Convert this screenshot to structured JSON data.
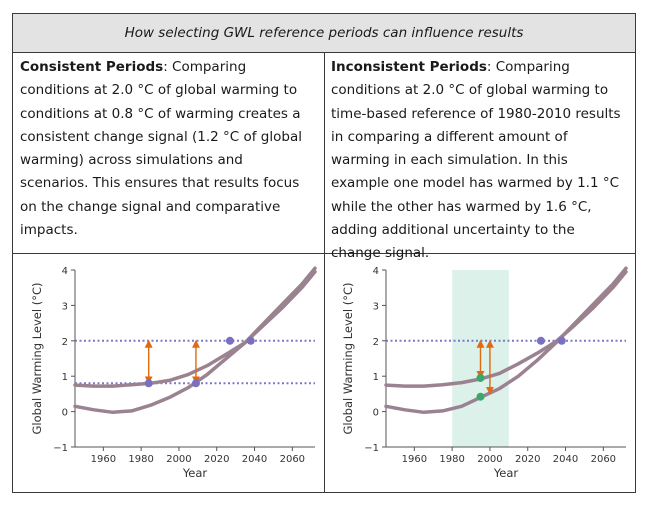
{
  "title": "How selecting GWL reference periods can influence results",
  "left_panel": {
    "heading": "Consistent Periods",
    "text": ": Comparing conditions at 2.0 °C of global warming to conditions at 0.8 °C of warming creates a consistent change signal (1.2 °C of global warming) across simulations and scenarios. This ensures that results focus on the change signal and comparative impacts."
  },
  "right_panel": {
    "heading": "Inconsistent Periods",
    "text": ": Comparing conditions at 2.0 °C of global warming to time-based reference of 1980-2010 results in comparing a different amount of warming in each simulation. In this example one model has warmed by 1.1 °C while the other has warmed by 1.6 °C, adding additional uncertainty to the change signal."
  },
  "chart_data": [
    {
      "type": "line",
      "xlabel": "Year",
      "ylabel": "Global Warming Level (°C)",
      "xlim": [
        1945,
        2072
      ],
      "ylim": [
        -1,
        4
      ],
      "xticks": [
        1960,
        1980,
        2000,
        2020,
        2040,
        2060
      ],
      "yticks": [
        -1,
        0,
        1,
        2,
        3,
        4
      ],
      "series": [
        {
          "x": [
            1945,
            1955,
            1965,
            1975,
            1985,
            1995,
            2005,
            2015,
            2025,
            2035,
            2045,
            2055,
            2065,
            2072
          ],
          "y": [
            0.75,
            0.72,
            0.72,
            0.76,
            0.8,
            0.88,
            1.05,
            1.3,
            1.62,
            1.95,
            2.45,
            2.95,
            3.5,
            3.95
          ]
        },
        {
          "x": [
            1945,
            1955,
            1965,
            1975,
            1985,
            1995,
            2005,
            2015,
            2025,
            2035,
            2045,
            2055,
            2065,
            2072
          ],
          "y": [
            0.15,
            0.05,
            -0.02,
            0.02,
            0.18,
            0.4,
            0.68,
            1.05,
            1.5,
            1.95,
            2.5,
            3.05,
            3.6,
            4.05
          ]
        }
      ],
      "hlines": [
        2.0,
        0.8
      ],
      "points": [
        {
          "x": 1984,
          "y": 0.8,
          "color": "#7a6fc0"
        },
        {
          "x": 2009,
          "y": 0.8,
          "color": "#7a6fc0"
        },
        {
          "x": 2027,
          "y": 2.0,
          "color": "#7a6fc0"
        },
        {
          "x": 2038,
          "y": 2.0,
          "color": "#7a6fc0"
        }
      ],
      "arrows": [
        {
          "x": 1984,
          "y1": 0.8,
          "y2": 2.0
        },
        {
          "x": 2009,
          "y1": 0.8,
          "y2": 2.0
        }
      ]
    },
    {
      "type": "line",
      "xlabel": "Year",
      "ylabel": "Global Warming Level (°C)",
      "xlim": [
        1945,
        2072
      ],
      "ylim": [
        -1,
        4
      ],
      "xticks": [
        1960,
        1980,
        2000,
        2020,
        2040,
        2060
      ],
      "yticks": [
        -1,
        0,
        1,
        2,
        3,
        4
      ],
      "shade": [
        1980,
        2010
      ],
      "series": [
        {
          "x": [
            1945,
            1955,
            1965,
            1975,
            1985,
            1995,
            2005,
            2015,
            2025,
            2035,
            2045,
            2055,
            2065,
            2072
          ],
          "y": [
            0.75,
            0.72,
            0.72,
            0.76,
            0.82,
            0.92,
            1.08,
            1.35,
            1.65,
            1.98,
            2.45,
            2.95,
            3.5,
            3.95
          ]
        },
        {
          "x": [
            1945,
            1955,
            1965,
            1975,
            1985,
            1995,
            2005,
            2015,
            2025,
            2035,
            2045,
            2055,
            2065,
            2072
          ],
          "y": [
            0.15,
            0.05,
            -0.02,
            0.02,
            0.15,
            0.4,
            0.65,
            1.0,
            1.45,
            1.95,
            2.5,
            3.05,
            3.6,
            4.05
          ]
        }
      ],
      "hlines": [
        2.0
      ],
      "points": [
        {
          "x": 1995,
          "y": 0.95,
          "color": "#3aa86a"
        },
        {
          "x": 1995,
          "y": 0.42,
          "color": "#3aa86a"
        },
        {
          "x": 2027,
          "y": 2.0,
          "color": "#7a6fc0"
        },
        {
          "x": 2038,
          "y": 2.0,
          "color": "#7a6fc0"
        }
      ],
      "arrows": [
        {
          "x": 1995,
          "y1": 0.95,
          "y2": 2.0
        },
        {
          "x": 2000,
          "y1": 0.5,
          "y2": 2.0
        }
      ]
    }
  ],
  "colors": {
    "line": "#9b8290",
    "hline": "#7a78c8",
    "arrow": "#e06a10",
    "shade": "#d5efe6"
  }
}
